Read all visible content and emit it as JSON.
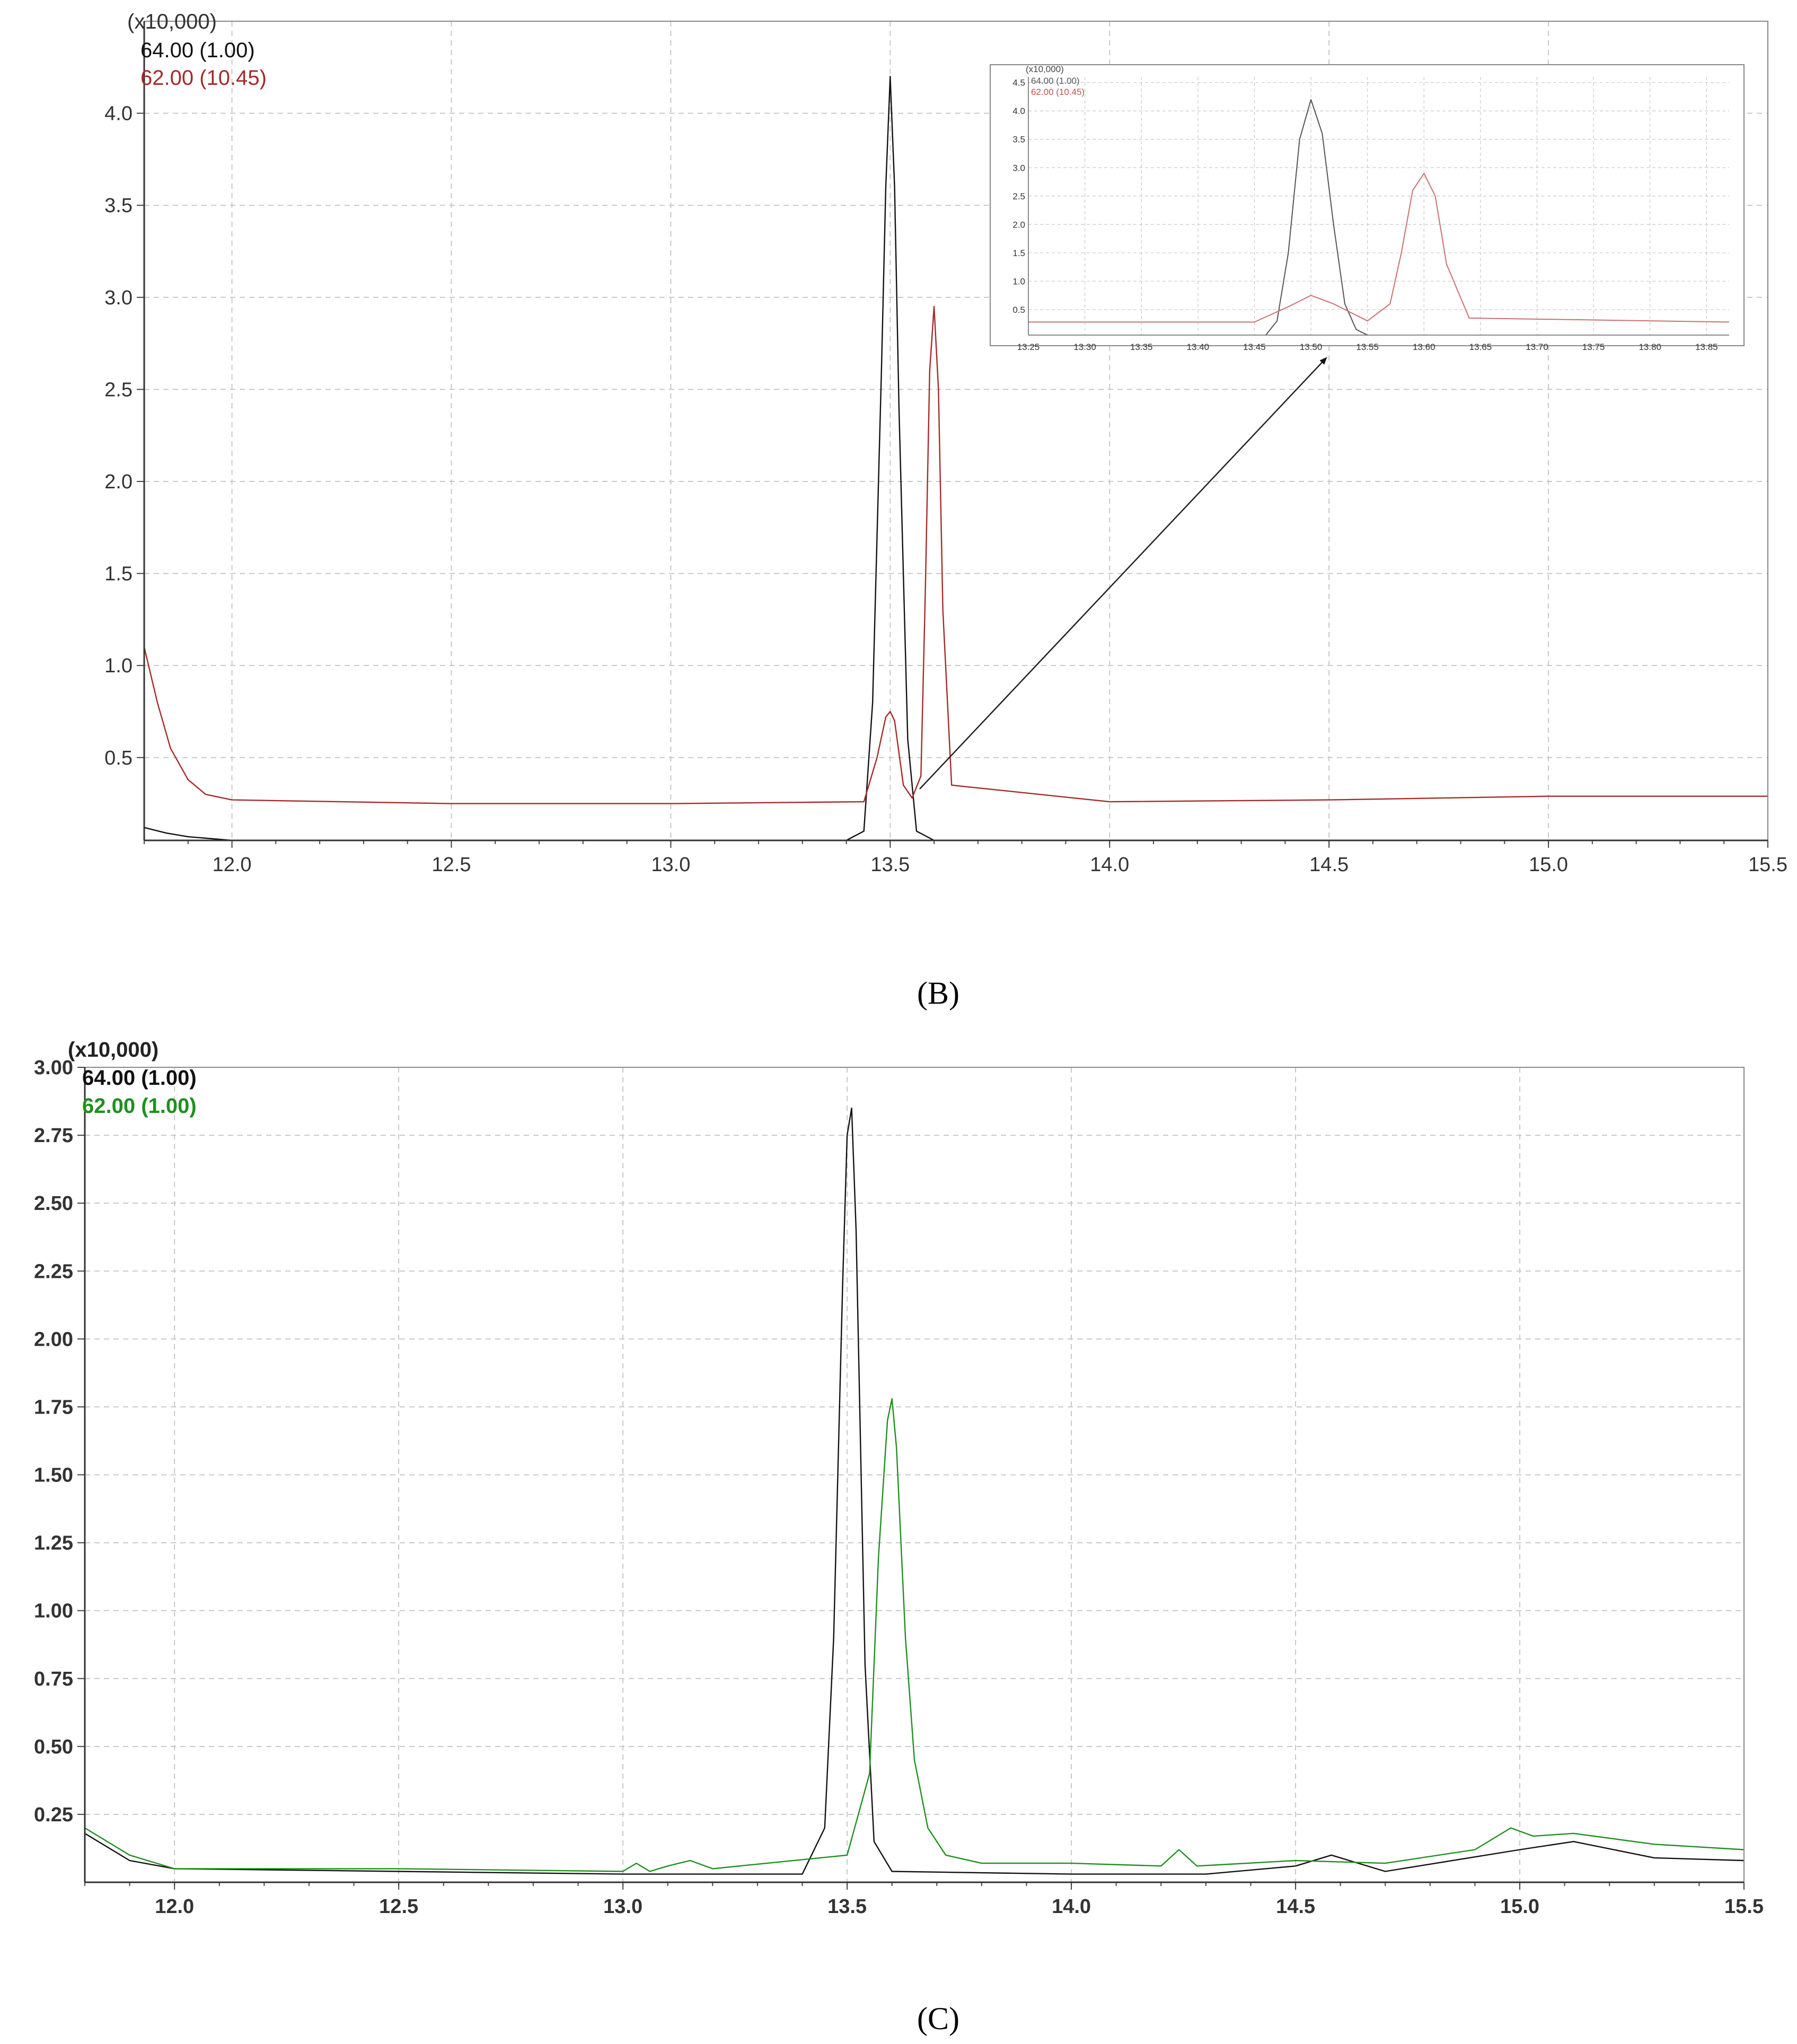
{
  "colors": {
    "black_trace": "#111111",
    "red_trace": "#a52a2a",
    "inset_red_trace": "#c97070",
    "inset_black_trace": "#555555",
    "green_trace": "#1f8f1f"
  },
  "chart_data": [
    {
      "panel_label": "(B)",
      "type": "line",
      "yscale_label": "(x10,000)",
      "xlim": [
        11.8,
        15.5
      ],
      "ylim": [
        0.05,
        4.5
      ],
      "xticks": [
        12.0,
        12.5,
        13.0,
        13.5,
        14.0,
        14.5,
        15.0,
        15.5
      ],
      "xtick_labels": [
        "12.0",
        "12.5",
        "13.0",
        "13.5",
        "14.0",
        "14.5",
        "15.0",
        "15.5"
      ],
      "yticks": [
        0.5,
        1.0,
        1.5,
        2.0,
        2.5,
        3.0,
        3.5,
        4.0
      ],
      "ytick_labels": [
        "0.5",
        "1.0",
        "1.5",
        "2.0",
        "2.5",
        "3.0",
        "3.5",
        "4.0"
      ],
      "grid": true,
      "legend_position": "top-left",
      "series": [
        {
          "name": "64.00 (1.00)",
          "color": "black",
          "x": [
            11.8,
            11.85,
            11.9,
            11.95,
            12.0,
            12.05,
            13.4,
            13.44,
            13.46,
            13.48,
            13.49,
            13.5,
            13.51,
            13.52,
            13.54,
            13.56,
            13.6
          ],
          "y": [
            0.12,
            0.09,
            0.07,
            0.06,
            0.05,
            0.05,
            0.05,
            0.1,
            0.8,
            2.6,
            3.6,
            4.2,
            3.6,
            2.4,
            0.6,
            0.1,
            0.05
          ]
        },
        {
          "name": "62.00 (10.45)",
          "color": "red",
          "x": [
            11.8,
            11.83,
            11.86,
            11.9,
            11.94,
            12.0,
            12.5,
            13.0,
            13.44,
            13.47,
            13.49,
            13.5,
            13.51,
            13.53,
            13.55,
            13.57,
            13.58,
            13.59,
            13.6,
            13.61,
            13.62,
            13.64,
            14.0,
            14.5,
            15.0,
            15.5
          ],
          "y": [
            1.1,
            0.8,
            0.55,
            0.38,
            0.3,
            0.27,
            0.25,
            0.25,
            0.26,
            0.5,
            0.72,
            0.75,
            0.7,
            0.35,
            0.28,
            0.4,
            1.4,
            2.6,
            2.95,
            2.5,
            1.3,
            0.35,
            0.26,
            0.27,
            0.29,
            0.29
          ]
        }
      ],
      "annotation": "arrow from peak region to inset",
      "inset": {
        "yscale_label": "(x10,000)",
        "xlim": [
          13.25,
          13.87
        ],
        "ylim": [
          0.05,
          4.6
        ],
        "xticks": [
          13.25,
          13.3,
          13.35,
          13.4,
          13.45,
          13.5,
          13.55,
          13.6,
          13.65,
          13.7,
          13.75,
          13.8,
          13.85
        ],
        "xtick_labels": [
          "13.25",
          "13.30",
          "13.35",
          "13.40",
          "13.45",
          "13.50",
          "13.55",
          "13.60",
          "13.65",
          "13.70",
          "13.75",
          "13.80",
          "13.85"
        ],
        "yticks": [
          0.5,
          1.0,
          1.5,
          2.0,
          2.5,
          3.0,
          3.5,
          4.0,
          4.5
        ],
        "ytick_labels": [
          "0.5",
          "1.0",
          "1.5",
          "2.0",
          "2.5",
          "3.0",
          "3.5",
          "4.0",
          "4.5"
        ],
        "legend": [
          "64.00 (1.00)",
          "62.00 (10.45)"
        ],
        "series": [
          {
            "name": "64.00 (1.00)",
            "x": [
              13.46,
              13.47,
              13.48,
              13.49,
              13.5,
              13.51,
              13.52,
              13.53,
              13.54,
              13.55
            ],
            "y": [
              0.05,
              0.3,
              1.5,
              3.5,
              4.2,
              3.6,
              2.0,
              0.6,
              0.15,
              0.05
            ]
          },
          {
            "name": "62.00 (10.45)",
            "x": [
              13.25,
              13.45,
              13.48,
              13.5,
              13.52,
              13.55,
              13.57,
              13.58,
              13.59,
              13.6,
              13.61,
              13.62,
              13.64,
              13.87
            ],
            "y": [
              0.28,
              0.28,
              0.55,
              0.75,
              0.6,
              0.3,
              0.6,
              1.5,
              2.6,
              2.9,
              2.5,
              1.3,
              0.35,
              0.28
            ]
          }
        ]
      }
    },
    {
      "panel_label": "(C)",
      "type": "line",
      "yscale_label": "(x10,000)",
      "xlim": [
        11.8,
        15.5
      ],
      "ylim": [
        0.0,
        3.0
      ],
      "xticks": [
        12.0,
        12.5,
        13.0,
        13.5,
        14.0,
        14.5,
        15.0,
        15.5
      ],
      "xtick_labels": [
        "12.0",
        "12.5",
        "13.0",
        "13.5",
        "14.0",
        "14.5",
        "15.0",
        "15.5"
      ],
      "yticks": [
        0.25,
        0.5,
        0.75,
        1.0,
        1.25,
        1.5,
        1.75,
        2.0,
        2.25,
        2.5,
        2.75,
        3.0
      ],
      "ytick_labels": [
        "0.25",
        "0.50",
        "0.75",
        "1.00",
        "1.25",
        "1.50",
        "1.75",
        "2.00",
        "2.25",
        "2.50",
        "2.75",
        "3.00"
      ],
      "grid": true,
      "legend_position": "top-left",
      "series": [
        {
          "name": "64.00 (1.00)",
          "color": "black",
          "x": [
            11.8,
            11.9,
            12.0,
            12.5,
            13.0,
            13.4,
            13.45,
            13.47,
            13.49,
            13.5,
            13.51,
            13.52,
            13.54,
            13.56,
            13.6,
            14.0,
            14.3,
            14.5,
            14.58,
            14.7,
            15.0,
            15.12,
            15.3,
            15.5
          ],
          "y": [
            0.18,
            0.08,
            0.05,
            0.04,
            0.03,
            0.03,
            0.2,
            0.9,
            2.2,
            2.75,
            2.85,
            2.4,
            0.8,
            0.15,
            0.04,
            0.03,
            0.03,
            0.06,
            0.1,
            0.04,
            0.12,
            0.15,
            0.09,
            0.08
          ]
        },
        {
          "name": "62.00 (1.00)",
          "color": "green",
          "x": [
            11.8,
            11.9,
            12.0,
            12.5,
            13.0,
            13.03,
            13.06,
            13.1,
            13.15,
            13.2,
            13.5,
            13.55,
            13.57,
            13.59,
            13.6,
            13.61,
            13.63,
            13.65,
            13.68,
            13.72,
            13.8,
            14.0,
            14.2,
            14.24,
            14.28,
            14.5,
            14.7,
            14.9,
            14.98,
            15.03,
            15.12,
            15.3,
            15.5
          ],
          "y": [
            0.2,
            0.1,
            0.05,
            0.05,
            0.04,
            0.07,
            0.04,
            0.06,
            0.08,
            0.05,
            0.1,
            0.4,
            1.2,
            1.7,
            1.78,
            1.6,
            0.9,
            0.45,
            0.2,
            0.1,
            0.07,
            0.07,
            0.06,
            0.12,
            0.06,
            0.08,
            0.07,
            0.12,
            0.2,
            0.17,
            0.18,
            0.14,
            0.12
          ]
        }
      ]
    }
  ]
}
